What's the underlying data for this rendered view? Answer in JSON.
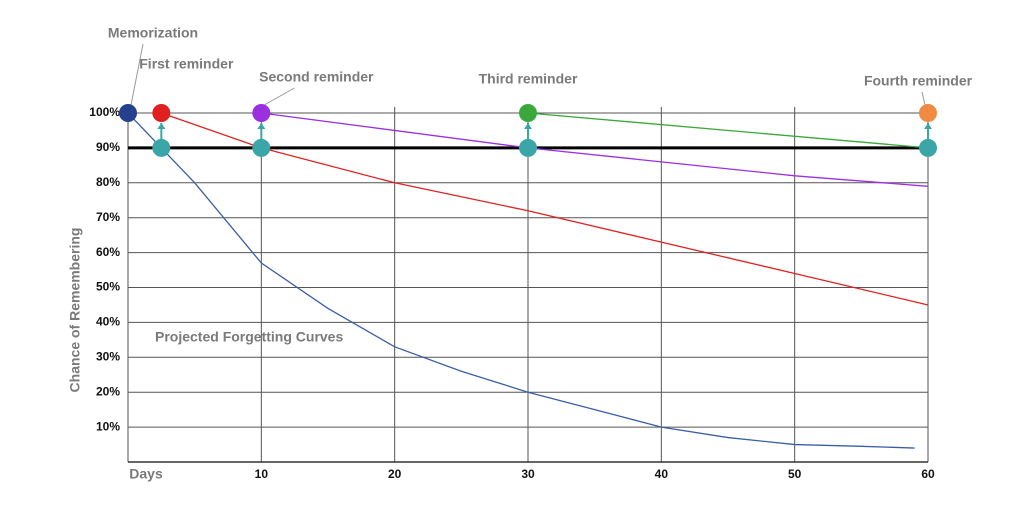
{
  "chart_data": {
    "type": "line",
    "y_label": "Chance of Remembering",
    "x_label": "Days",
    "annotation": "Projected Forgetting Curves",
    "xlim": [
      0,
      60
    ],
    "ylim": [
      0,
      100
    ],
    "xticks": [
      10,
      20,
      30,
      40,
      50,
      60
    ],
    "yticks": [
      {
        "value": 10,
        "label": "10%"
      },
      {
        "value": 20,
        "label": "20%"
      },
      {
        "value": 30,
        "label": "30%"
      },
      {
        "value": 40,
        "label": "40%"
      },
      {
        "value": 50,
        "label": "50%"
      },
      {
        "value": 60,
        "label": "60%"
      },
      {
        "value": 70,
        "label": "70%"
      },
      {
        "value": 80,
        "label": "80%"
      },
      {
        "value": 90,
        "label": "90%"
      },
      {
        "value": 100,
        "label": "100%"
      }
    ],
    "grid": true,
    "threshold": 90,
    "series": [
      {
        "color": "#3b5ea8",
        "x": [
          0,
          2.5,
          5,
          10,
          15,
          20,
          25,
          30,
          35,
          40,
          45,
          50,
          55,
          59
        ],
        "values": [
          100,
          90,
          80,
          57,
          44,
          33,
          26,
          20,
          15,
          10,
          7,
          5,
          4.5,
          4
        ]
      },
      {
        "color": "#e02020",
        "x": [
          2.5,
          10,
          20,
          30,
          40,
          50,
          60
        ],
        "values": [
          100,
          90,
          80,
          72,
          63,
          54,
          45
        ]
      },
      {
        "color": "#9b30e0",
        "x": [
          10,
          30,
          40,
          50,
          60
        ],
        "values": [
          100,
          90,
          86,
          82,
          79
        ]
      },
      {
        "color": "#3aa83a",
        "x": [
          30,
          60
        ],
        "values": [
          100,
          90
        ]
      }
    ],
    "markers": [
      {
        "label": "Memorization",
        "x": 0,
        "y": 100,
        "color": "#23418f"
      },
      {
        "label": "First reminder",
        "x": 2.5,
        "y": 100,
        "color": "#e02020"
      },
      {
        "label": "Second reminder",
        "x": 10,
        "y": 100,
        "color": "#9b30e0"
      },
      {
        "label": "Third reminder",
        "x": 30,
        "y": 100,
        "color": "#3aa83a"
      },
      {
        "label": "Fourth reminder",
        "x": 60,
        "y": 100,
        "color": "#f08a40"
      }
    ],
    "checkpoints": {
      "color": "#3aa6a8",
      "x": [
        2.5,
        10,
        30,
        60
      ],
      "values": [
        90,
        90,
        90,
        90
      ]
    }
  }
}
